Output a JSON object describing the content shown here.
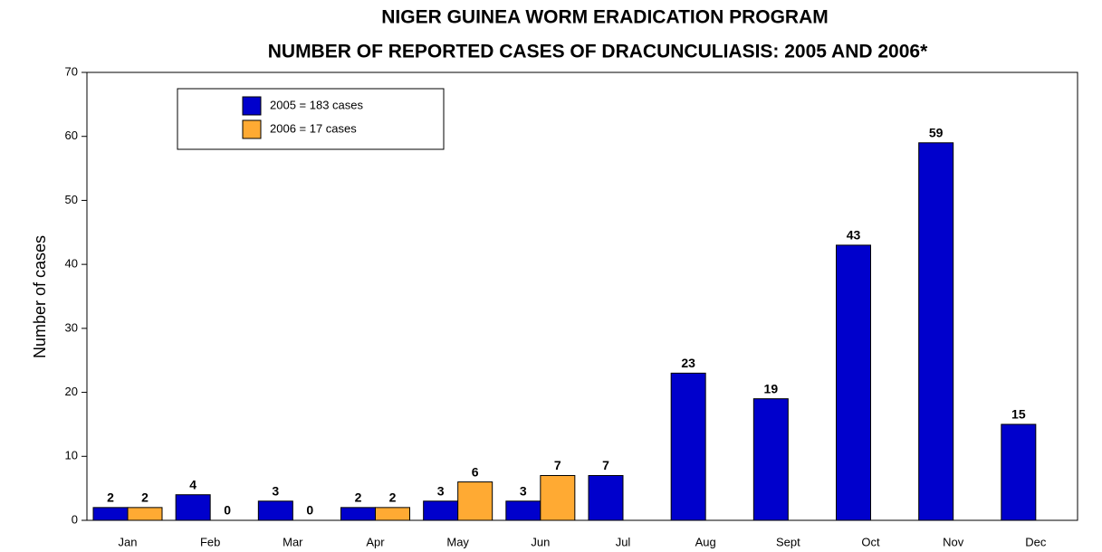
{
  "chart_data": {
    "type": "bar",
    "title": [
      "NIGER GUINEA WORM ERADICATION PROGRAM",
      "NUMBER OF REPORTED CASES OF DRACUNCULIASIS: 2005 AND  2006*"
    ],
    "y_label": "Number of cases",
    "categories": [
      "Jan",
      "Feb",
      "Mar",
      "Apr",
      "May",
      "Jun",
      "Jul",
      "Aug",
      "Sept",
      "Oct",
      "Nov",
      "Dec"
    ],
    "series": [
      {
        "name": "2005 = 183 cases",
        "color": "#0000cc",
        "values": [
          2,
          4,
          3,
          2,
          3,
          3,
          7,
          23,
          19,
          43,
          59,
          15
        ]
      },
      {
        "name": "2006 = 17 cases",
        "color": "#ffaa33",
        "values": [
          2,
          0,
          0,
          2,
          6,
          7,
          null,
          null,
          null,
          null,
          null,
          null
        ]
      }
    ],
    "ylim": [
      0,
      70
    ],
    "yticks": [
      0,
      10,
      20,
      30,
      40,
      50,
      60,
      70
    ],
    "grid": false,
    "legend": "upper-left"
  }
}
